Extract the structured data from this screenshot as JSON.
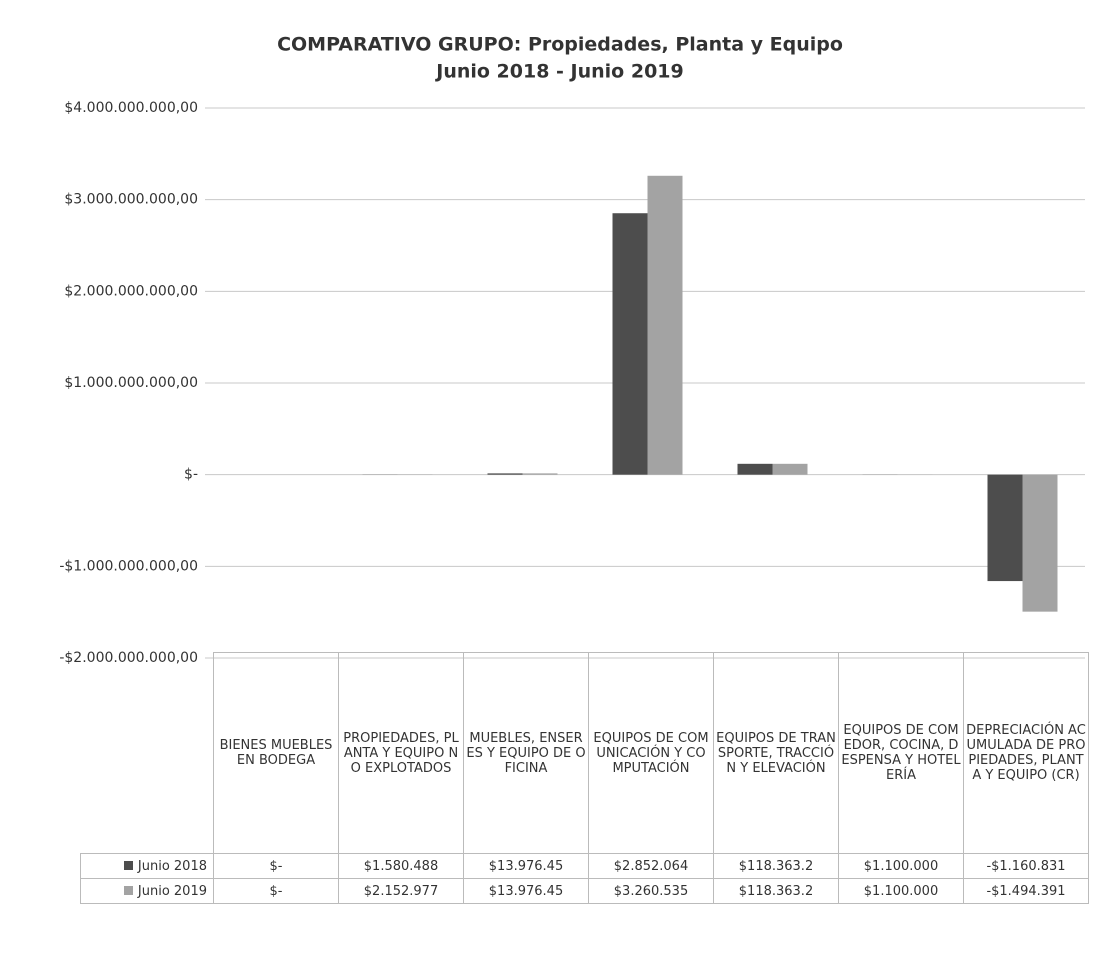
{
  "chart_data": {
    "type": "bar",
    "title": "COMPARATIVO GRUPO: Propiedades, Planta y Equipo",
    "subtitle": "Junio 2018 - Junio 2019",
    "categories": [
      "BIENES MUEBLES EN BODEGA",
      "PROPIEDADES, PLANTA Y EQUIPO NO EXPLOTADOS",
      "MUEBLES, ENSERES Y EQUIPO DE OFICINA",
      "EQUIPOS DE COMUNICACIÓN Y COMPUTACIÓN",
      "EQUIPOS DE TRANSPORTE, TRACCIÓN Y ELEVACIÓN",
      "EQUIPOS DE COMEDOR, COCINA, DESPENSA Y HOTELERÍA",
      "DEPRECIACIÓN ACUMULADA DE PROPIEDADES, PLANTA Y EQUIPO (CR)"
    ],
    "series": [
      {
        "name": "Junio 2018",
        "color": "#4d4d4d",
        "values": [
          0,
          1580488,
          13976450,
          2852064000,
          118363200,
          1100000,
          -1160831000
        ],
        "value_labels": [
          "$-",
          "$1.580.488",
          "$13.976.45",
          "$2.852.064",
          "$118.363.2",
          "$1.100.000",
          "-$1.160.831"
        ]
      },
      {
        "name": "Junio 2019",
        "color": "#a3a3a3",
        "values": [
          0,
          2152977,
          13976450,
          3260535000,
          118363200,
          1100000,
          -1494391000
        ],
        "value_labels": [
          "$-",
          "$2.152.977",
          "$13.976.45",
          "$3.260.535",
          "$118.363.2",
          "$1.100.000",
          "-$1.494.391"
        ]
      }
    ],
    "ylim": [
      -2000000000,
      4000000000
    ],
    "yticks": [
      {
        "value": -2000000000,
        "label": "-$2.000.000.000,00"
      },
      {
        "value": -1000000000,
        "label": "-$1.000.000.000,00"
      },
      {
        "value": 0,
        "label": "$-"
      },
      {
        "value": 1000000000,
        "label": "$1.000.000.000,00"
      },
      {
        "value": 2000000000,
        "label": "$2.000.000.000,00"
      },
      {
        "value": 3000000000,
        "label": "$3.000.000.000,00"
      },
      {
        "value": 4000000000,
        "label": "$4.000.000.000,00"
      }
    ],
    "grid": true
  }
}
